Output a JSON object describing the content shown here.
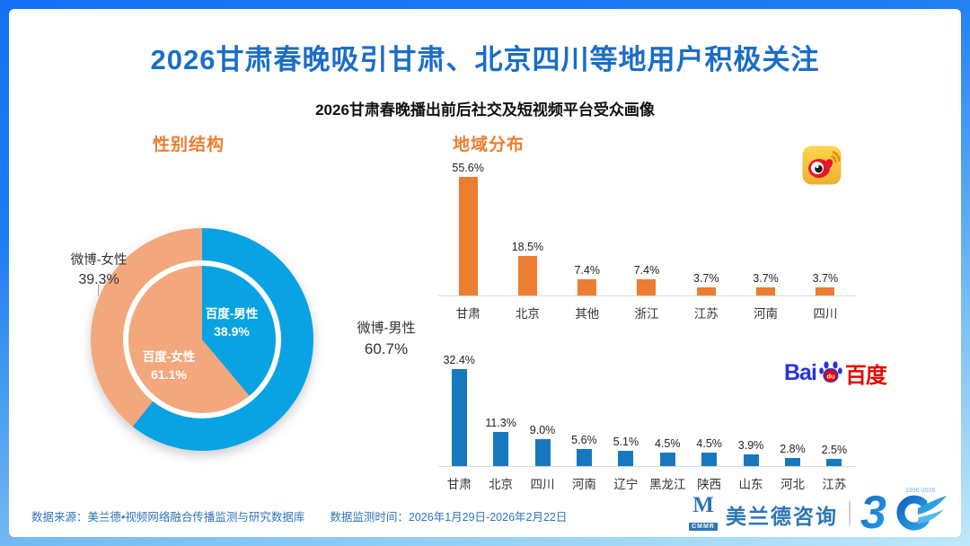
{
  "header": {
    "title": "2026甘肃春晚吸引甘肃、北京四川等地用户积极关注",
    "subtitle": "2026甘肃春晚播出前后社交及短视频平台受众画像"
  },
  "sections": {
    "gender_heading": "性别结构",
    "region_heading": "地域分布"
  },
  "chart_data": [
    {
      "type": "pie",
      "title": "性别结构",
      "subtype": "double-ring-donut",
      "legend_position": "none",
      "rings": [
        {
          "name": "微博 (outer ring)",
          "segments": [
            {
              "label": "微博-男性",
              "value": 60.7,
              "color": "#09a2e3"
            },
            {
              "label": "微博-女性",
              "value": 39.3,
              "color": "#f2a87c"
            }
          ]
        },
        {
          "name": "百度 (inner circle)",
          "segments": [
            {
              "label": "百度-男性",
              "value": 38.9,
              "color": "#09a2e3"
            },
            {
              "label": "百度-女性",
              "value": 61.1,
              "color": "#f2a87c"
            }
          ]
        }
      ],
      "labels": {
        "outer_left": {
          "name": "微博-女性",
          "pct": "39.3%"
        },
        "outer_right": {
          "name": "微博-男性",
          "pct": "60.7%"
        },
        "inner_upper": {
          "name": "百度-男性",
          "pct": "38.9%"
        },
        "inner_lower": {
          "name": "百度-女性",
          "pct": "61.1%"
        }
      }
    },
    {
      "type": "bar",
      "platform": "微博",
      "title": "地域分布",
      "color": "#ed7d31",
      "categories": [
        "甘肃",
        "北京",
        "其他",
        "浙江",
        "江苏",
        "河南",
        "四川"
      ],
      "values": [
        55.6,
        18.5,
        7.4,
        7.4,
        3.7,
        3.7,
        3.7
      ],
      "value_labels": [
        "55.6%",
        "18.5%",
        "7.4%",
        "7.4%",
        "3.7%",
        "3.7%",
        "3.7%"
      ],
      "ylim": [
        0,
        60
      ],
      "grid": false,
      "legend_position": "none"
    },
    {
      "type": "bar",
      "platform": "百度",
      "title": "地域分布",
      "color": "#1878bf",
      "categories": [
        "甘肃",
        "北京",
        "四川",
        "河南",
        "辽宁",
        "黑龙江",
        "陕西",
        "山东",
        "河北",
        "江苏"
      ],
      "values": [
        32.4,
        11.3,
        9.0,
        5.6,
        5.1,
        4.5,
        4.5,
        3.9,
        2.8,
        2.5
      ],
      "value_labels": [
        "32.4%",
        "11.3%",
        "9.0%",
        "5.6%",
        "5.1%",
        "4.5%",
        "4.5%",
        "3.9%",
        "2.8%",
        "2.5%"
      ],
      "ylim": [
        0,
        36
      ],
      "grid": false,
      "legend_position": "none"
    }
  ],
  "brands": {
    "weibo_icon": "weibo",
    "baidu_logo": {
      "bai": "Bai",
      "du": "du",
      "cn": "百度"
    }
  },
  "footer": {
    "source": "数据来源：美兰德•视频网络融合传播监测与研究数据库",
    "monitor": "数据监测时间：2026年1月29日-2026年2月22日",
    "company": {
      "m": "M",
      "sub": "CMMR",
      "name": "美兰德咨询",
      "anniv_number": "3",
      "anniv_years": "1996-2026"
    }
  },
  "colors": {
    "frame_top": "#1470f5",
    "frame_bottom": "#bfe8fb",
    "title_blue": "#1b6dc7",
    "heading_orange": "#ed7d31",
    "pie_blue": "#09a2e3",
    "pie_orange": "#f2a87c",
    "weibo_bar_orange": "#ed7d31",
    "baidu_bar_blue": "#1878bf",
    "footer_blue": "#2e75b6",
    "baidu_brand_blue": "#2932e1",
    "baidu_brand_red": "#e10601",
    "weibo_gold": "#f7c73b",
    "weibo_red": "#e6162d"
  }
}
